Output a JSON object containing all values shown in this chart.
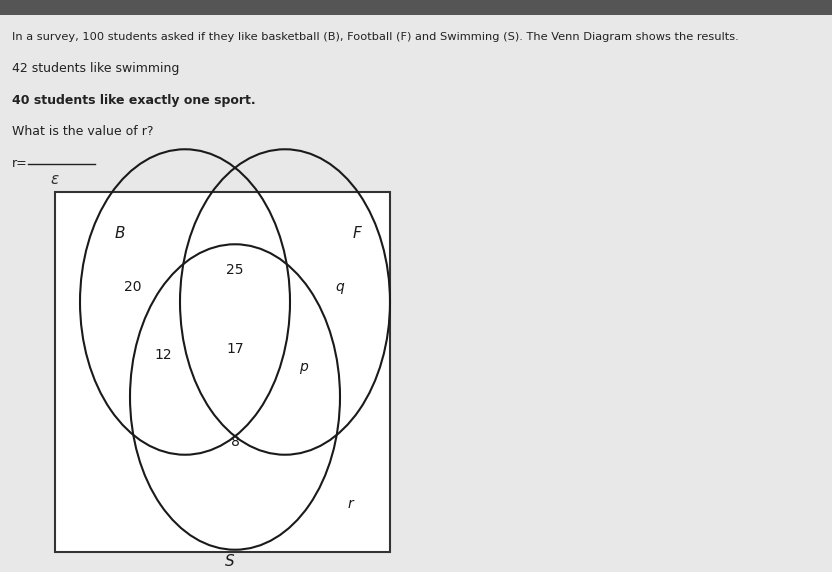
{
  "title_line1": "In a survey, 100 students asked if they like basketball (B), Football (F) and Swimming (S). The Venn Diagram shows the results.",
  "line2": "42 students like swimming",
  "line3": "40 students like exactly one sport.",
  "line4": "What is the value of r?",
  "line5": "r=",
  "epsilon_label": "ε",
  "circle_B_label": "B",
  "circle_F_label": "F",
  "circle_S_label": "S",
  "val_B_only": "20",
  "val_BF_only": "25",
  "val_F_only": "q",
  "val_BFS": "17",
  "val_BS_only": "12",
  "val_FS_only": "p",
  "val_S_only": "8",
  "val_outside": "r",
  "bg_color": "#d8d8d8",
  "text_area_bg": "#e8e8e8",
  "box_facecolor": "#e8e8e8",
  "circle_edge_color": "#000000",
  "text_color": "#000000",
  "fig_width": 8.32,
  "fig_height": 5.72
}
